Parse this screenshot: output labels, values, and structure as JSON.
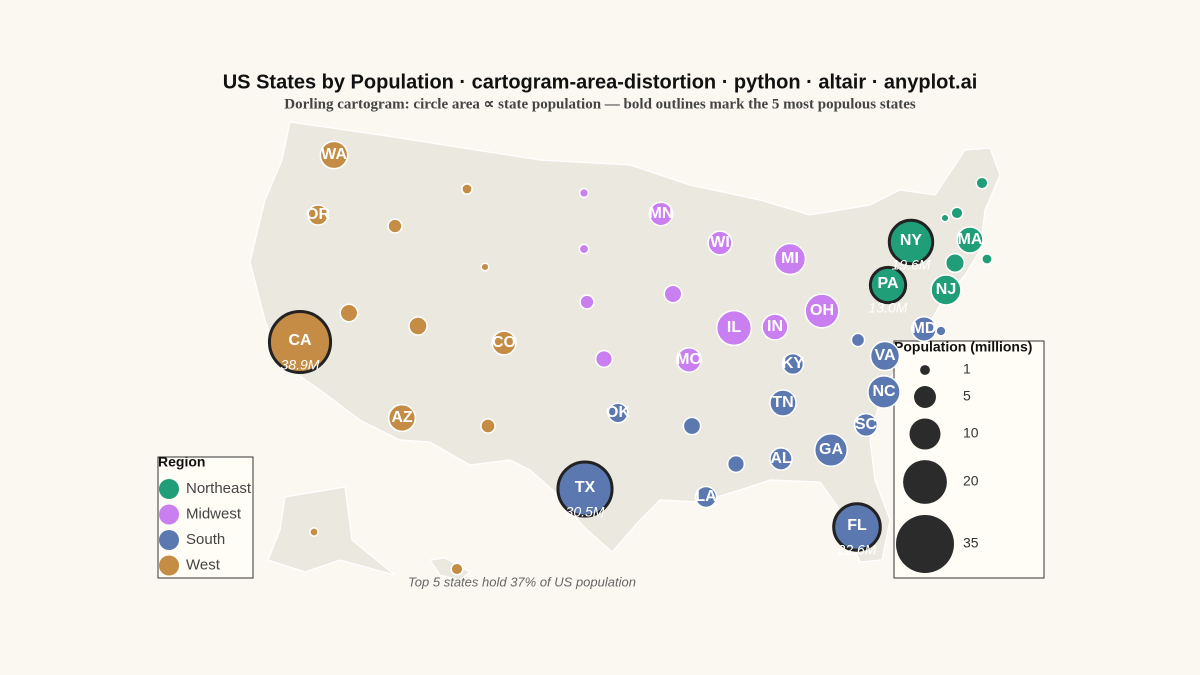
{
  "chart_data": {
    "type": "dorling",
    "title": "US States by Population · cartogram-area-distortion · python · altair · anyplot.ai",
    "subtitle": "Dorling cartogram: circle area ∝ state population — bold outlines mark the 5 most populous states",
    "annotation": "Top 5 states hold 37% of US population",
    "legend_title": "Region",
    "series": [
      {
        "name": "Northeast",
        "color": "#1f9e78",
        "labels": [
          "NY",
          "PA",
          "NJ",
          "MA",
          null,
          null,
          null,
          null,
          null
        ],
        "values": [
          19.6,
          13.0,
          9.3,
          7.0,
          3.6,
          1.4,
          1.4,
          0.6,
          1.1
        ],
        "value_labels": [
          "19.6M",
          "13.0M",
          null,
          null,
          null,
          null,
          null,
          null,
          null
        ]
      },
      {
        "name": "Midwest",
        "color": "#c97ff0",
        "labels": [
          "IL",
          "OH",
          "MI",
          "IN",
          "WI",
          "MN",
          "MO",
          null,
          null,
          null,
          null,
          null
        ],
        "values": [
          12.5,
          11.8,
          10.0,
          6.9,
          5.9,
          5.7,
          6.2,
          3.2,
          2.9,
          2.0,
          0.9,
          0.8
        ],
        "value_labels": [
          null,
          null,
          null,
          null,
          null,
          null,
          null,
          null,
          null,
          null,
          null,
          null
        ]
      },
      {
        "name": "South",
        "color": "#5b78b0",
        "labels": [
          "TX",
          "FL",
          "GA",
          "NC",
          "VA",
          "TN",
          "MD",
          "SC",
          "AL",
          "LA",
          "KY",
          "OK",
          null,
          null,
          null,
          null
        ],
        "values": [
          30.5,
          22.6,
          11.0,
          10.8,
          8.7,
          7.1,
          6.2,
          5.4,
          5.1,
          4.6,
          4.5,
          4.0,
          3.1,
          2.9,
          1.8,
          1.0
        ],
        "value_labels": [
          "30.5M",
          "22.6M",
          null,
          null,
          null,
          null,
          null,
          null,
          null,
          null,
          null,
          null,
          null,
          null,
          null,
          null
        ]
      },
      {
        "name": "West",
        "color": "#c48c45",
        "labels": [
          "CA",
          "WA",
          "AZ",
          "CO",
          "OR",
          null,
          null,
          null,
          null,
          null,
          null,
          null,
          null
        ],
        "values": [
          38.9,
          7.8,
          7.4,
          5.9,
          4.2,
          3.4,
          3.2,
          2.1,
          2.0,
          1.1,
          0.6,
          0.7,
          1.4
        ],
        "value_labels": [
          "38.9M",
          null,
          null,
          null,
          null,
          null,
          null,
          null,
          null,
          null,
          null,
          null,
          null
        ]
      }
    ],
    "size_legend": {
      "title": "Population (millions)",
      "values": [
        1,
        5,
        10,
        20,
        35
      ]
    }
  }
}
